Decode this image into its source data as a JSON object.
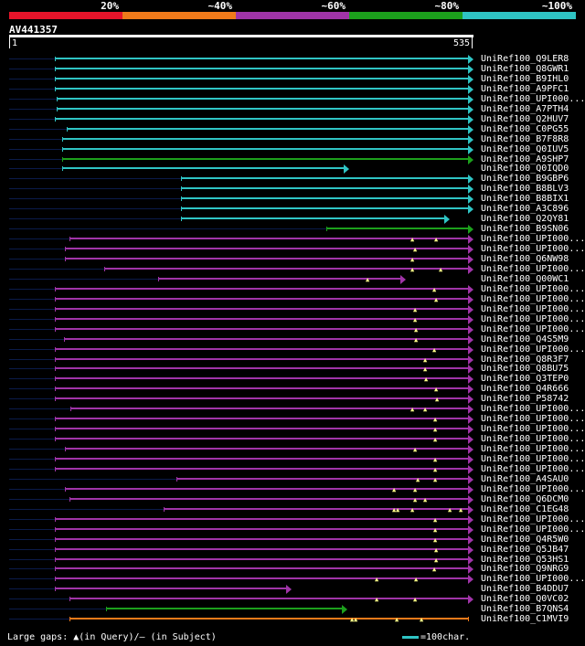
{
  "identity_scale": {
    "labels": [
      "20%",
      "~40%",
      "~60%",
      "~80%",
      "~100%"
    ],
    "colors": [
      "#e8142a",
      "#f07a1a",
      "#a034a8",
      "#1ca01c",
      "#2fc4c4"
    ]
  },
  "query": {
    "name": "AV441357",
    "start": "1",
    "end": "535",
    "length": 535
  },
  "hits": [
    {
      "name": "UniRef100_Q9LER8",
      "color": "#2fc4c4",
      "s": 60,
      "e": 512,
      "arrow": true
    },
    {
      "name": "UniRef100_Q8GWR1",
      "color": "#2fc4c4",
      "s": 60,
      "e": 512,
      "arrow": true
    },
    {
      "name": "UniRef100_B9IHL0",
      "color": "#2fc4c4",
      "s": 60,
      "e": 512,
      "arrow": true
    },
    {
      "name": "UniRef100_A9PFC1",
      "color": "#2fc4c4",
      "s": 60,
      "e": 512,
      "arrow": true
    },
    {
      "name": "UniRef100_UPI000...",
      "color": "#2fc4c4",
      "s": 62,
      "e": 512,
      "arrow": true
    },
    {
      "name": "UniRef100_A7PTH4",
      "color": "#2fc4c4",
      "s": 62,
      "e": 512,
      "arrow": true
    },
    {
      "name": "UniRef100_Q2HUV7",
      "color": "#2fc4c4",
      "s": 60,
      "e": 512,
      "arrow": true
    },
    {
      "name": "UniRef100_C0PG55",
      "color": "#2fc4c4",
      "s": 73,
      "e": 512,
      "arrow": true
    },
    {
      "name": "UniRef100_B7F8R8",
      "color": "#2fc4c4",
      "s": 68,
      "e": 512,
      "arrow": true
    },
    {
      "name": "UniRef100_Q0IUV5",
      "color": "#2fc4c4",
      "s": 68,
      "e": 512,
      "arrow": true
    },
    {
      "name": "UniRef100_A9SHP7",
      "color": "#1ca01c",
      "s": 68,
      "e": 512,
      "arrow": true
    },
    {
      "name": "UniRef100_Q0IQD0",
      "color": "#2fc4c4",
      "s": 68,
      "e": 376,
      "arrow": true
    },
    {
      "name": "UniRef100_B9GBP6",
      "color": "#2fc4c4",
      "s": 198,
      "e": 512,
      "arrow": true
    },
    {
      "name": "UniRef100_B8BLV3",
      "color": "#2fc4c4",
      "s": 198,
      "e": 512,
      "arrow": true
    },
    {
      "name": "UniRef100_B8BIX1",
      "color": "#2fc4c4",
      "s": 198,
      "e": 512,
      "arrow": true
    },
    {
      "name": "UniRef100_A3C896",
      "color": "#2fc4c4",
      "s": 198,
      "e": 512,
      "arrow": true
    },
    {
      "name": "UniRef100_Q2QY81",
      "color": "#2fc4c4",
      "s": 198,
      "e": 486,
      "arrow": true
    },
    {
      "name": "UniRef100_B9SN06",
      "color": "#1ca01c",
      "s": 357,
      "e": 512,
      "arrow": true
    },
    {
      "name": "UniRef100_UPI000...",
      "color": "#a034a8",
      "s": 76,
      "e": 512,
      "arrow": true,
      "gaps": [
        452,
        478
      ]
    },
    {
      "name": "UniRef100_UPI000...",
      "color": "#a034a8",
      "s": 71,
      "e": 512,
      "arrow": true,
      "gaps": [
        455
      ]
    },
    {
      "name": "UniRef100_Q6NW98",
      "color": "#a034a8",
      "s": 71,
      "e": 512,
      "arrow": true,
      "gaps": [
        452
      ]
    },
    {
      "name": "UniRef100_UPI000...",
      "color": "#a034a8",
      "s": 114,
      "e": 512,
      "arrow": true,
      "gaps": [
        452,
        483
      ]
    },
    {
      "name": "UniRef100_Q00WC1",
      "color": "#a034a8",
      "s": 173,
      "e": 438,
      "arrow": true,
      "gaps": [
        403
      ]
    },
    {
      "name": "UniRef100_UPI000...",
      "color": "#a034a8",
      "s": 60,
      "e": 512,
      "arrow": true,
      "gaps": [
        476
      ]
    },
    {
      "name": "UniRef100_UPI000...",
      "color": "#a034a8",
      "s": 60,
      "e": 512,
      "arrow": true,
      "gaps": [
        478
      ]
    },
    {
      "name": "UniRef100_UPI000...",
      "color": "#a034a8",
      "s": 60,
      "e": 512,
      "arrow": true,
      "gaps": [
        455
      ]
    },
    {
      "name": "UniRef100_UPI000...",
      "color": "#a034a8",
      "s": 60,
      "e": 512,
      "arrow": true,
      "gaps": [
        455
      ]
    },
    {
      "name": "UniRef100_UPI000...",
      "color": "#a034a8",
      "s": 60,
      "e": 512,
      "arrow": true,
      "gaps": [
        456
      ]
    },
    {
      "name": "UniRef100_Q4S5M9",
      "color": "#a034a8",
      "s": 70,
      "e": 512,
      "arrow": true,
      "gaps": [
        456
      ]
    },
    {
      "name": "UniRef100_UPI000...",
      "color": "#a034a8",
      "s": 60,
      "e": 512,
      "arrow": true,
      "gaps": [
        476
      ]
    },
    {
      "name": "UniRef100_Q8R3F7",
      "color": "#a034a8",
      "s": 60,
      "e": 512,
      "arrow": true,
      "gaps": [
        466
      ]
    },
    {
      "name": "UniRef100_Q8BU75",
      "color": "#a034a8",
      "s": 60,
      "e": 512,
      "arrow": true,
      "gaps": [
        466
      ]
    },
    {
      "name": "UniRef100_Q3TEP0",
      "color": "#a034a8",
      "s": 60,
      "e": 512,
      "arrow": true,
      "gaps": [
        467
      ]
    },
    {
      "name": "UniRef100_Q4R666",
      "color": "#a034a8",
      "s": 60,
      "e": 512,
      "arrow": true,
      "gaps": [
        478
      ]
    },
    {
      "name": "UniRef100_P58742",
      "color": "#a034a8",
      "s": 60,
      "e": 512,
      "arrow": true,
      "gaps": [
        479
      ]
    },
    {
      "name": "UniRef100_UPI000...",
      "color": "#a034a8",
      "s": 77,
      "e": 512,
      "arrow": true,
      "gaps": [
        452,
        466
      ]
    },
    {
      "name": "UniRef100_UPI000...",
      "color": "#a034a8",
      "s": 60,
      "e": 512,
      "arrow": true,
      "gaps": [
        477
      ]
    },
    {
      "name": "UniRef100_UPI000...",
      "color": "#a034a8",
      "s": 60,
      "e": 512,
      "arrow": true,
      "gaps": [
        477
      ]
    },
    {
      "name": "UniRef100_UPI000...",
      "color": "#a034a8",
      "s": 60,
      "e": 512,
      "arrow": true,
      "gaps": [
        477
      ]
    },
    {
      "name": "UniRef100_UPI000...",
      "color": "#a034a8",
      "s": 71,
      "e": 512,
      "arrow": true,
      "gaps": [
        455
      ]
    },
    {
      "name": "UniRef100_UPI000...",
      "color": "#a034a8",
      "s": 60,
      "e": 512,
      "arrow": true,
      "gaps": [
        477
      ]
    },
    {
      "name": "UniRef100_UPI000...",
      "color": "#a034a8",
      "s": 60,
      "e": 512,
      "arrow": true,
      "gaps": [
        477
      ]
    },
    {
      "name": "UniRef100_A4SAU0",
      "color": "#a034a8",
      "s": 193,
      "e": 512,
      "arrow": true,
      "gaps": [
        458,
        477
      ]
    },
    {
      "name": "UniRef100_UPI000...",
      "color": "#a034a8",
      "s": 71,
      "e": 512,
      "arrow": true,
      "gaps": [
        432,
        455
      ]
    },
    {
      "name": "UniRef100_Q6DCM0",
      "color": "#a034a8",
      "s": 76,
      "e": 512,
      "arrow": true,
      "gaps": [
        455,
        466
      ]
    },
    {
      "name": "UniRef100_C1EG48",
      "color": "#a034a8",
      "s": 179,
      "e": 512,
      "arrow": true,
      "gaps": [
        432,
        436,
        452,
        493,
        505
      ]
    },
    {
      "name": "UniRef100_UPI000...",
      "color": "#a034a8",
      "s": 60,
      "e": 512,
      "arrow": true,
      "gaps": [
        477
      ]
    },
    {
      "name": "UniRef100_UPI000...",
      "color": "#a034a8",
      "s": 60,
      "e": 512,
      "arrow": true,
      "gaps": [
        477
      ]
    },
    {
      "name": "UniRef100_Q4R5W0",
      "color": "#a034a8",
      "s": 60,
      "e": 512,
      "arrow": true,
      "gaps": [
        477
      ]
    },
    {
      "name": "UniRef100_Q5JB47",
      "color": "#a034a8",
      "s": 60,
      "e": 512,
      "arrow": true,
      "gaps": [
        478
      ]
    },
    {
      "name": "UniRef100_Q53HS1",
      "color": "#a034a8",
      "s": 60,
      "e": 512,
      "arrow": true,
      "gaps": [
        478
      ]
    },
    {
      "name": "UniRef100_Q9NRG9",
      "color": "#a034a8",
      "s": 60,
      "e": 512,
      "arrow": true,
      "gaps": [
        476
      ]
    },
    {
      "name": "UniRef100_UPI000...",
      "color": "#a034a8",
      "s": 60,
      "e": 512,
      "arrow": true,
      "gaps": [
        413,
        456
      ]
    },
    {
      "name": "UniRef100_B4DDU7",
      "color": "#a034a8",
      "s": 60,
      "e": 313,
      "arrow": true
    },
    {
      "name": "UniRef100_Q0VC02",
      "color": "#a034a8",
      "s": 76,
      "e": 512,
      "arrow": true,
      "gaps": [
        413,
        455
      ]
    },
    {
      "name": "UniRef100_B7QNS4",
      "color": "#1ca01c",
      "s": 116,
      "e": 374,
      "arrow": true
    },
    {
      "name": "UniRef100_C1MVI9",
      "color": "#f07a1a",
      "s": 76,
      "e": 512,
      "arrow": false,
      "gaps": [
        386,
        390,
        435,
        462
      ]
    }
  ],
  "legend": {
    "large_gaps": "Large gaps:",
    "in_query": "▲(in Query)/– (in Subject)",
    "scale": "=100char."
  }
}
